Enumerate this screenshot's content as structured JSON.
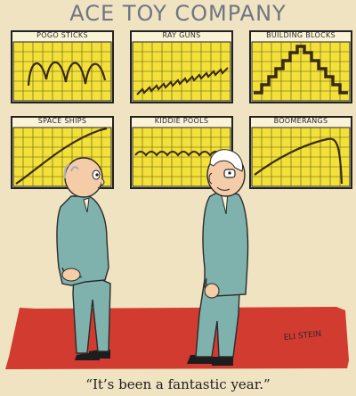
{
  "title": "ACE TOY COMPANY",
  "charts": [
    {
      "label": "POGO STICKS",
      "trend": "bouncing"
    },
    {
      "label": "RAY GUNS",
      "trend": "zigzag rising"
    },
    {
      "label": "BUILDING BLOCKS",
      "trend": "stepped pyramid"
    },
    {
      "label": "SPACE SHIPS",
      "trend": "arc up"
    },
    {
      "label": "KIDDIE POOLS",
      "trend": "wavy flat"
    },
    {
      "label": "BOOMERANGS",
      "trend": "rise then drop"
    }
  ],
  "signature": "ELI STEIN",
  "caption": "“It’s been a fantastic year.”",
  "colors": {
    "paper": "#efe3c2",
    "chart_fill": "#f3e13a",
    "grid": "#3a3a1a",
    "suit": "#7fb2ad",
    "floor": "#d23b30"
  }
}
